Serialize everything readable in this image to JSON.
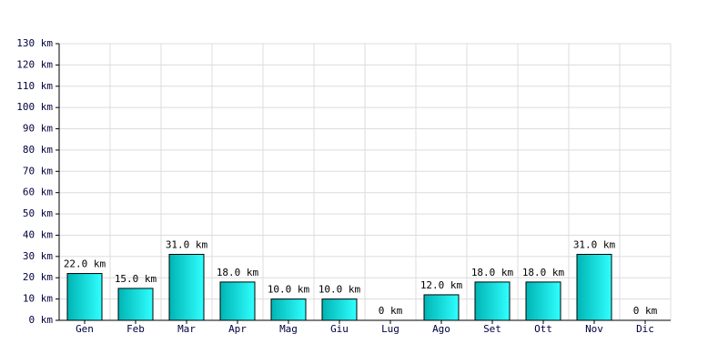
{
  "chart_data": {
    "type": "bar",
    "categories": [
      "Gen",
      "Feb",
      "Mar",
      "Apr",
      "Mag",
      "Giu",
      "Lug",
      "Ago",
      "Set",
      "Ott",
      "Nov",
      "Dic"
    ],
    "values": [
      22,
      15,
      31,
      18,
      10,
      10,
      0,
      12,
      18,
      18,
      31,
      0
    ],
    "value_labels": [
      "22.0 km",
      "15.0 km",
      "31.0 km",
      "18.0 km",
      "10.0 km",
      "10.0 km",
      "0 km",
      "12.0 km",
      "18.0 km",
      "18.0 km",
      "31.0 km",
      "0 km"
    ],
    "color": "#00b4b4",
    "ylim": [
      0,
      130
    ],
    "yticks": [
      {
        "value": 0,
        "label": "0 km"
      },
      {
        "value": 10,
        "label": "10 km"
      },
      {
        "value": 20,
        "label": "20 km"
      },
      {
        "value": 30,
        "label": "30 km"
      },
      {
        "value": 40,
        "label": "40 km"
      },
      {
        "value": 50,
        "label": "50 km"
      },
      {
        "value": 60,
        "label": "60 km"
      },
      {
        "value": 70,
        "label": "70 km"
      },
      {
        "value": 80,
        "label": "80 km"
      },
      {
        "value": 90,
        "label": "90 km"
      },
      {
        "value": 100,
        "label": "100 km"
      },
      {
        "value": 110,
        "label": "110 km"
      },
      {
        "value": 120,
        "label": "120 km"
      },
      {
        "value": 130,
        "label": "130 km"
      }
    ],
    "grid": true
  }
}
